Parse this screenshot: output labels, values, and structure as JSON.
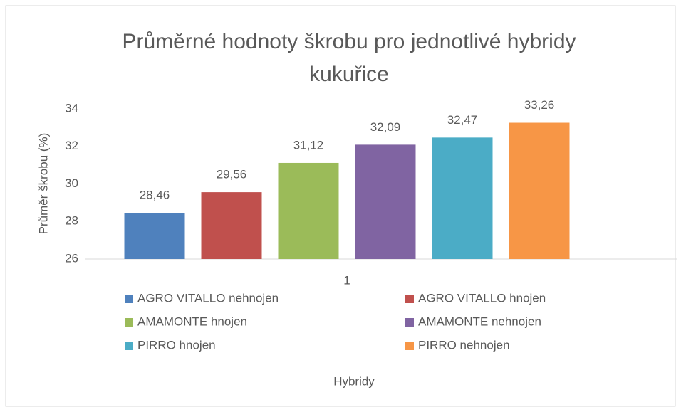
{
  "chart_data": {
    "type": "bar",
    "title": "Průměrné hodnoty škrobu pro jednotlivé hybridy kukuřice",
    "x_label": "Hybridy",
    "y_label": "Průměr škrobu (%)",
    "categories": [
      "1"
    ],
    "series": [
      {
        "name": "AGRO VITALLO nehnojen",
        "color": "#4f81bd",
        "values": [
          28.46
        ],
        "value_labels": [
          "28,46"
        ]
      },
      {
        "name": "AGRO VITALLO hnojen",
        "color": "#c0504d",
        "values": [
          29.56
        ],
        "value_labels": [
          "29,56"
        ]
      },
      {
        "name": "AMAMONTE hnojen",
        "color": "#9bbb59",
        "values": [
          31.12
        ],
        "value_labels": [
          "31,12"
        ]
      },
      {
        "name": "AMAMONTE nehnojen",
        "color": "#8064a2",
        "values": [
          32.09
        ],
        "value_labels": [
          "32,09"
        ]
      },
      {
        "name": "PIRRO hnojen",
        "color": "#4bacc6",
        "values": [
          32.47
        ],
        "value_labels": [
          "32,47"
        ]
      },
      {
        "name": "PIRRO nehnojen",
        "color": "#f79646",
        "values": [
          33.26
        ],
        "value_labels": [
          "33,26"
        ]
      }
    ],
    "ylim": [
      26,
      34
    ],
    "yticks": [
      26,
      28,
      30,
      32,
      34
    ],
    "grid": false,
    "legend": "bottom"
  }
}
